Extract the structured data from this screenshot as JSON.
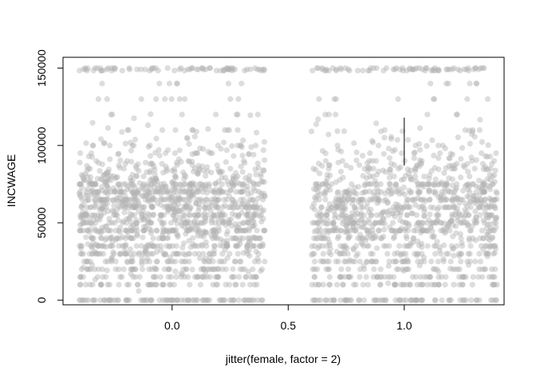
{
  "chart_data": {
    "type": "scatter",
    "title": "",
    "xlabel": "jitter(female, factor = 2)",
    "ylabel": "INCWAGE",
    "xlim": [
      -0.47,
      1.43
    ],
    "ylim": [
      -3000,
      157000
    ],
    "xticks": [
      0.0,
      0.5,
      1.0
    ],
    "xtick_labels": [
      "0.0",
      "0.5",
      "1.0"
    ],
    "yticks": [
      0,
      50000,
      100000,
      150000
    ],
    "ytick_labels": [
      "0",
      "50000",
      "100000",
      "150000"
    ],
    "point_color": "#b3b3b3",
    "point_opacity": 0.45,
    "grid": false,
    "groups": [
      {
        "x_center": 0.0,
        "x_range": [
          -0.4,
          0.4
        ],
        "n_points": 1600
      },
      {
        "x_center": 1.0,
        "x_range": [
          0.6,
          1.4
        ],
        "n_points": 1300
      }
    ],
    "reference_segment": {
      "x": 1.0,
      "y_range": [
        87000,
        118000
      ],
      "color": "#000000"
    }
  }
}
